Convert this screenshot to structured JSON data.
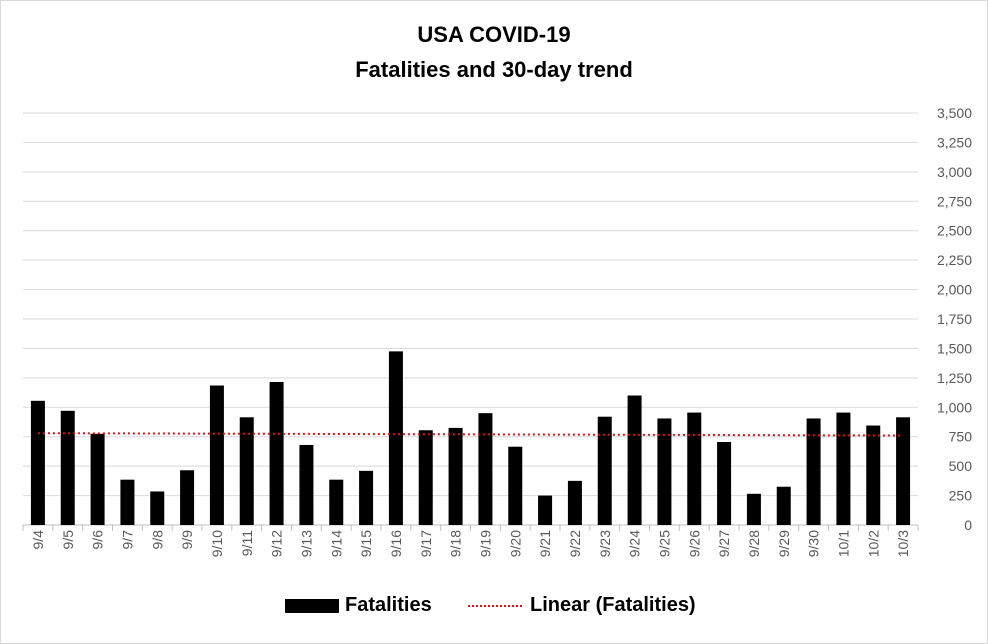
{
  "chart_data": {
    "type": "bar",
    "title": "USA COVID-19",
    "subtitle": "Fatalities and 30-day trend",
    "categories": [
      "9/4",
      "9/5",
      "9/6",
      "9/7",
      "9/8",
      "9/9",
      "9/10",
      "9/11",
      "9/12",
      "9/13",
      "9/14",
      "9/15",
      "9/16",
      "9/17",
      "9/18",
      "9/19",
      "9/20",
      "9/21",
      "9/22",
      "9/23",
      "9/24",
      "9/25",
      "9/26",
      "9/27",
      "9/28",
      "9/29",
      "9/30",
      "10/1",
      "10/2",
      "10/3"
    ],
    "series": [
      {
        "name": "Fatalities",
        "color": "#000000",
        "values": [
          1055,
          970,
          775,
          385,
          285,
          465,
          1185,
          915,
          1215,
          680,
          385,
          460,
          1475,
          805,
          825,
          950,
          665,
          250,
          375,
          920,
          1100,
          905,
          955,
          705,
          265,
          325,
          905,
          955,
          845,
          915
        ]
      }
    ],
    "trendline": {
      "name": "Linear (Fatalities)",
      "type": "linear",
      "color": "#e01010",
      "start": 780,
      "end": 760
    },
    "ylim": [
      0,
      3500
    ],
    "yticks": [
      0,
      250,
      500,
      750,
      1000,
      1250,
      1500,
      1750,
      2000,
      2250,
      2500,
      2750,
      3000,
      3250,
      3500
    ],
    "ytick_labels": [
      "0",
      "250",
      "500",
      "750",
      "1,000",
      "1,250",
      "1,500",
      "1,750",
      "2,000",
      "2,250",
      "2,500",
      "2,750",
      "3,000",
      "3,250",
      "3,500"
    ],
    "y_axis_side": "right",
    "grid": true,
    "legend_position": "bottom"
  }
}
